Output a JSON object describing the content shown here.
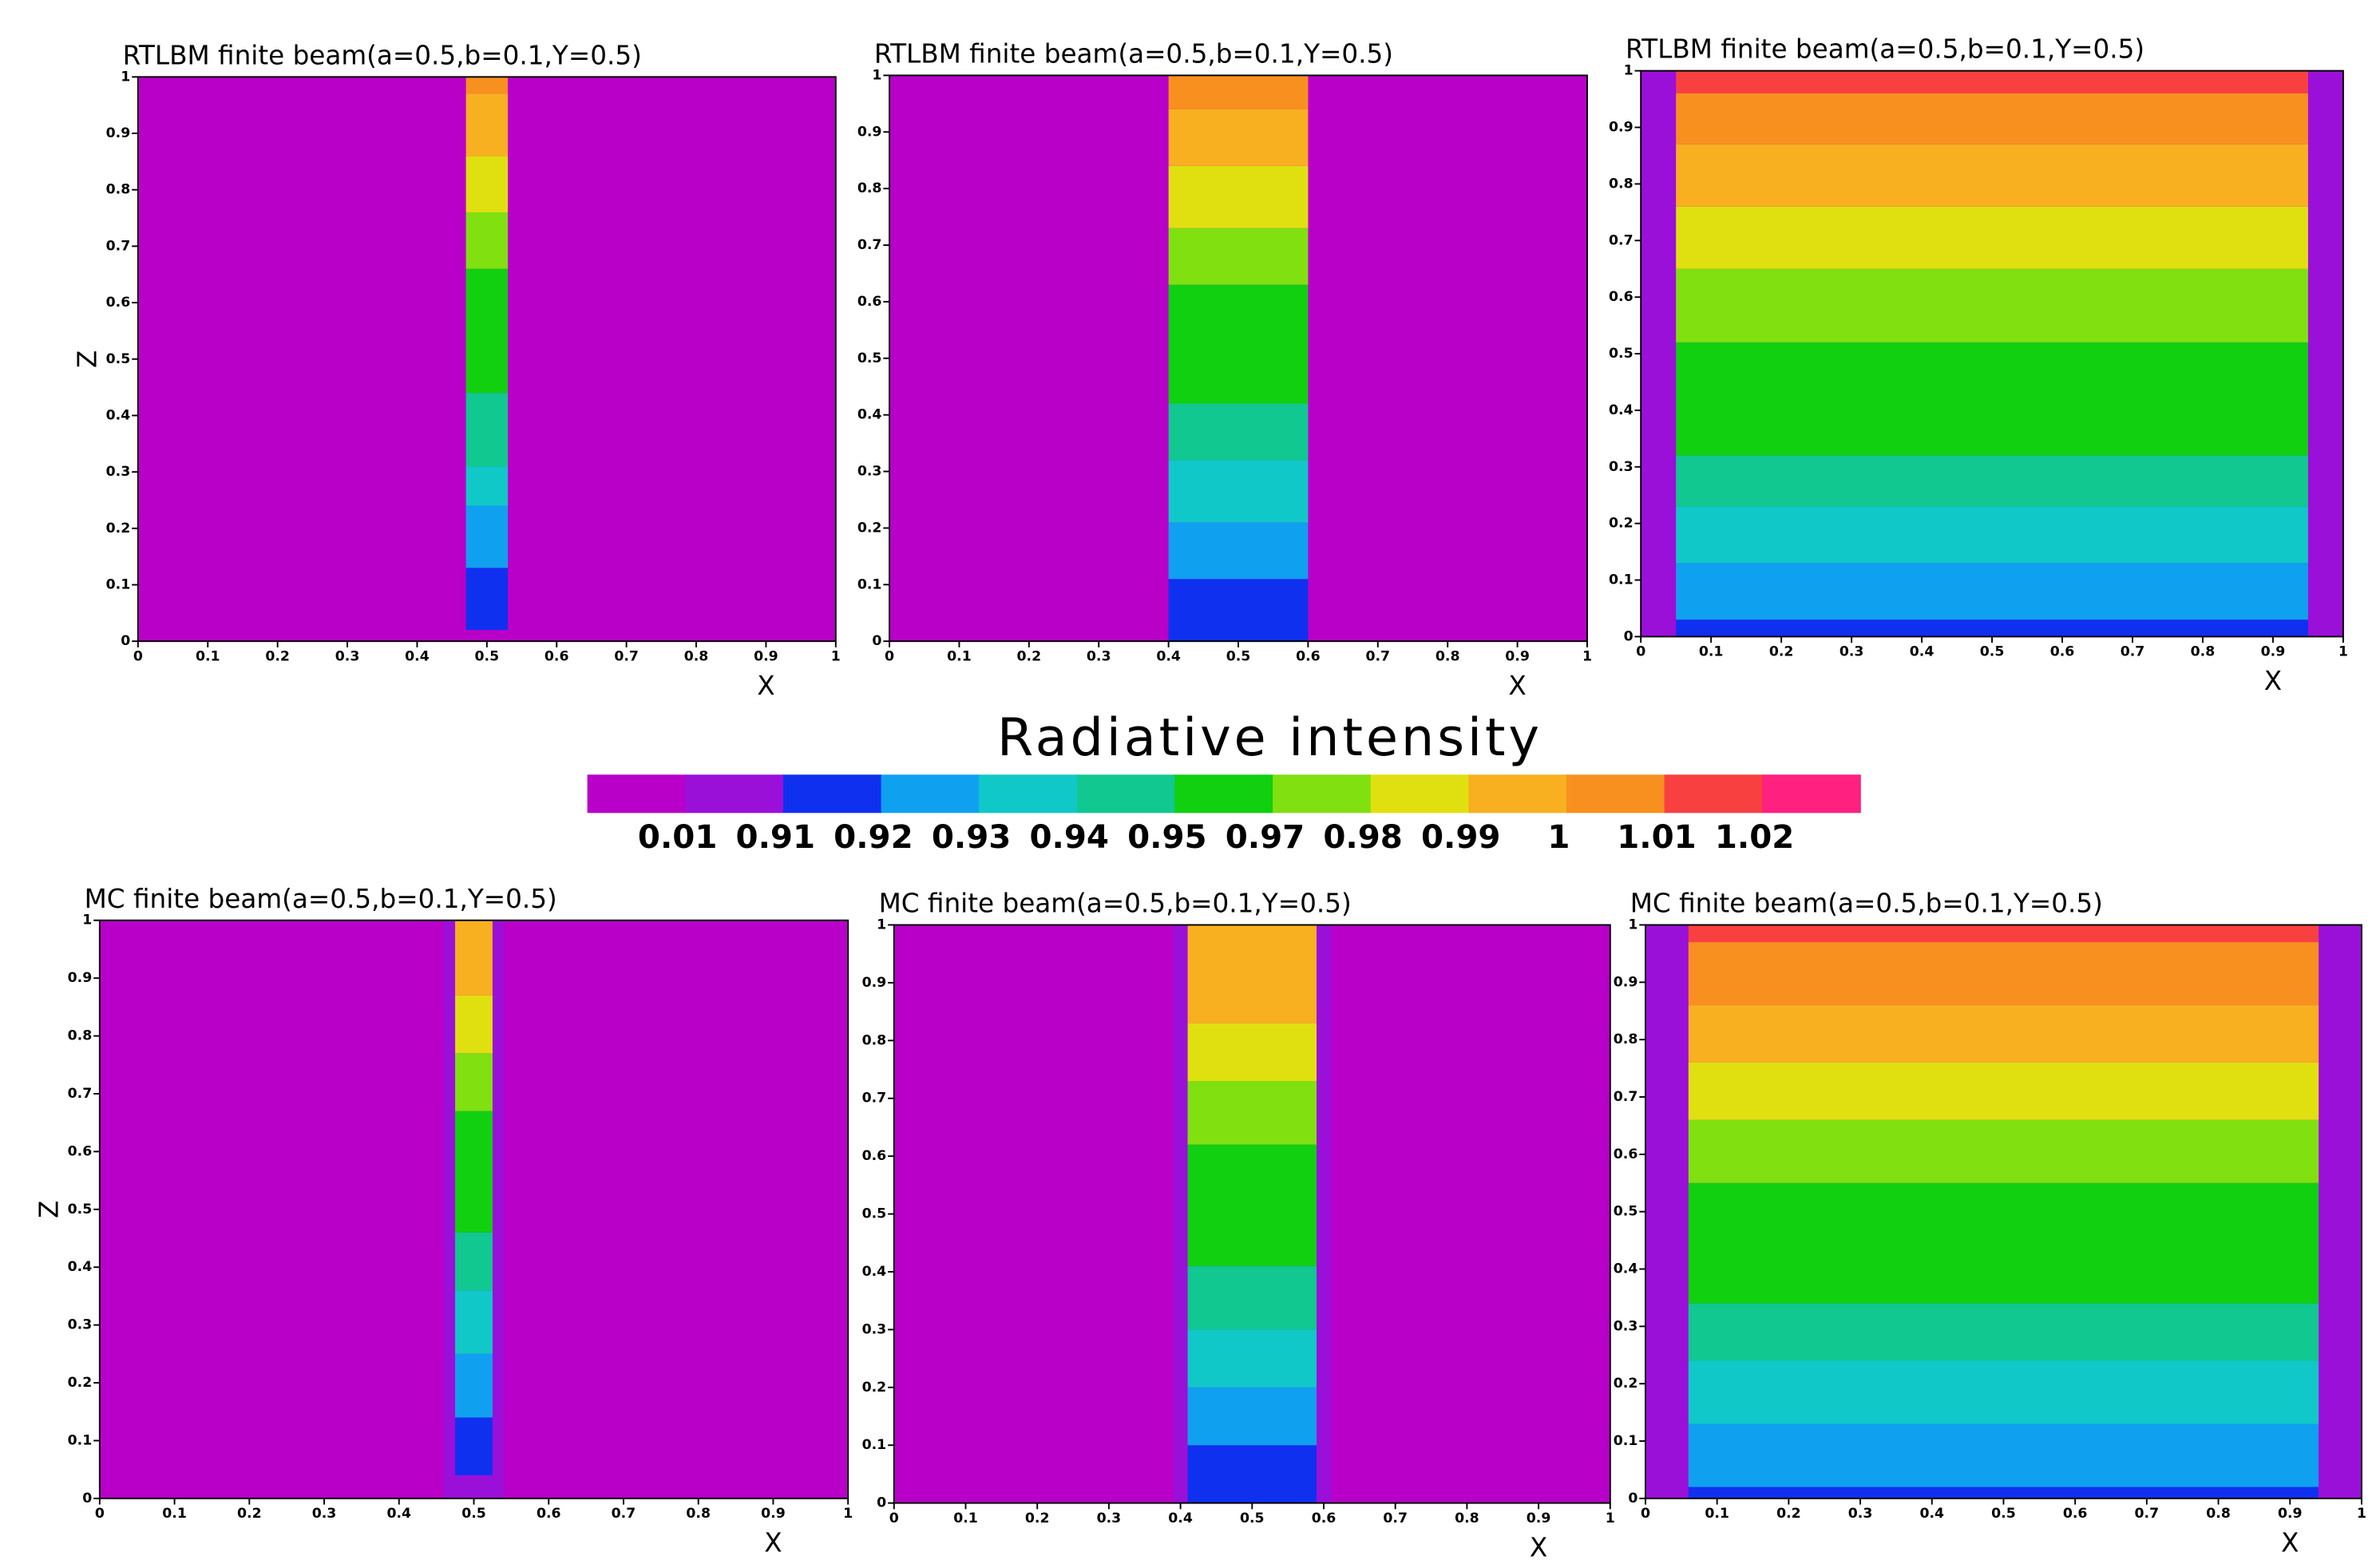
{
  "chart_data": [
    {
      "type": "contour",
      "title": "RTLBM finite beam(a=0.5,b=0.1,Y=0.5)",
      "xlabel": "X",
      "ylabel": "Z",
      "background": "#b800c8",
      "xlim": [
        0,
        1
      ],
      "ylim": [
        0,
        1
      ],
      "xticks": [
        0,
        0.1,
        0.2,
        0.3,
        0.4,
        0.5,
        0.6,
        0.7,
        0.8,
        0.9,
        1
      ],
      "yticks": [
        0,
        0.1,
        0.2,
        0.3,
        0.4,
        0.5,
        0.6,
        0.7,
        0.8,
        0.9,
        1
      ],
      "beam_x": [
        0.47,
        0.53
      ],
      "bands": [
        {
          "z": [
            0.02,
            0.13
          ],
          "color": "#1030f0"
        },
        {
          "z": [
            0.13,
            0.24
          ],
          "color": "#10a0f0"
        },
        {
          "z": [
            0.24,
            0.31
          ],
          "color": "#10c8c8"
        },
        {
          "z": [
            0.31,
            0.44
          ],
          "color": "#10c890"
        },
        {
          "z": [
            0.44,
            0.66
          ],
          "color": "#10d010"
        },
        {
          "z": [
            0.66,
            0.76
          ],
          "color": "#80e010"
        },
        {
          "z": [
            0.76,
            0.86
          ],
          "color": "#e0e010"
        },
        {
          "z": [
            0.86,
            0.97
          ],
          "color": "#f8b020"
        },
        {
          "z": [
            0.97,
            1
          ],
          "color": "#f89020"
        }
      ]
    },
    {
      "type": "contour",
      "title": "RTLBM finite beam(a=0.5,b=0.1,Y=0.5)",
      "xlabel": "X",
      "background": "#b800c8",
      "xlim": [
        0,
        1
      ],
      "ylim": [
        0,
        1
      ],
      "xticks": [
        0,
        0.1,
        0.2,
        0.3,
        0.4,
        0.5,
        0.6,
        0.7,
        0.8,
        0.9,
        1
      ],
      "yticks": [
        0,
        0.1,
        0.2,
        0.3,
        0.4,
        0.5,
        0.6,
        0.7,
        0.8,
        0.9,
        1
      ],
      "beam_x": [
        0.4,
        0.6
      ],
      "bands": [
        {
          "z": [
            0,
            0.11
          ],
          "color": "#1030f0"
        },
        {
          "z": [
            0.11,
            0.21
          ],
          "color": "#10a0f0"
        },
        {
          "z": [
            0.21,
            0.32
          ],
          "color": "#10c8c8"
        },
        {
          "z": [
            0.32,
            0.42
          ],
          "color": "#10c890"
        },
        {
          "z": [
            0.42,
            0.63
          ],
          "color": "#10d010"
        },
        {
          "z": [
            0.63,
            0.73
          ],
          "color": "#80e010"
        },
        {
          "z": [
            0.73,
            0.84
          ],
          "color": "#e0e010"
        },
        {
          "z": [
            0.84,
            0.94
          ],
          "color": "#f8b020"
        },
        {
          "z": [
            0.94,
            1
          ],
          "color": "#f89020"
        }
      ]
    },
    {
      "type": "contour",
      "title": "RTLBM finite beam(a=0.5,b=0.1,Y=0.5)",
      "xlabel": "X",
      "background": "#9a10d8",
      "xlim": [
        0,
        1
      ],
      "ylim": [
        0,
        1
      ],
      "xticks": [
        0,
        0.1,
        0.2,
        0.3,
        0.4,
        0.5,
        0.6,
        0.7,
        0.8,
        0.9,
        1
      ],
      "yticks": [
        0,
        0.1,
        0.2,
        0.3,
        0.4,
        0.5,
        0.6,
        0.7,
        0.8,
        0.9,
        1
      ],
      "beam_x": [
        0.05,
        0.95
      ],
      "bands": [
        {
          "z": [
            0,
            0.03
          ],
          "color": "#1030f0"
        },
        {
          "z": [
            0.03,
            0.13
          ],
          "color": "#10a0f0"
        },
        {
          "z": [
            0.13,
            0.23
          ],
          "color": "#10c8c8"
        },
        {
          "z": [
            0.23,
            0.32
          ],
          "color": "#10c890"
        },
        {
          "z": [
            0.32,
            0.52
          ],
          "color": "#10d010"
        },
        {
          "z": [
            0.52,
            0.65
          ],
          "color": "#80e010"
        },
        {
          "z": [
            0.65,
            0.76
          ],
          "color": "#e0e010"
        },
        {
          "z": [
            0.76,
            0.87
          ],
          "color": "#f8b020"
        },
        {
          "z": [
            0.87,
            0.96
          ],
          "color": "#f89020"
        },
        {
          "z": [
            0.96,
            1
          ],
          "color": "#f84040"
        }
      ]
    },
    {
      "type": "contour",
      "title": "MC finite beam(a=0.5,b=0.1,Y=0.5)",
      "xlabel": "X",
      "ylabel": "Z",
      "background": "#b800c8",
      "xlim": [
        0,
        1
      ],
      "ylim": [
        0,
        1
      ],
      "xticks": [
        0,
        0.1,
        0.2,
        0.3,
        0.4,
        0.5,
        0.6,
        0.7,
        0.8,
        0.9,
        1
      ],
      "yticks": [
        0,
        0.1,
        0.2,
        0.3,
        0.4,
        0.5,
        0.6,
        0.7,
        0.8,
        0.9,
        1
      ],
      "edge_x": [
        0.46,
        0.54
      ],
      "edge_color": "#9a10d8",
      "beam_x": [
        0.475,
        0.525
      ],
      "bands": [
        {
          "z": [
            0.04,
            0.14
          ],
          "color": "#1030f0"
        },
        {
          "z": [
            0.14,
            0.25
          ],
          "color": "#10a0f0"
        },
        {
          "z": [
            0.25,
            0.36
          ],
          "color": "#10c8c8"
        },
        {
          "z": [
            0.36,
            0.46
          ],
          "color": "#10c890"
        },
        {
          "z": [
            0.46,
            0.67
          ],
          "color": "#10d010"
        },
        {
          "z": [
            0.67,
            0.77
          ],
          "color": "#80e010"
        },
        {
          "z": [
            0.77,
            0.87
          ],
          "color": "#e0e010"
        },
        {
          "z": [
            0.87,
            1
          ],
          "color": "#f8b020"
        }
      ]
    },
    {
      "type": "contour",
      "title": "MC finite beam(a=0.5,b=0.1,Y=0.5)",
      "xlabel": "X",
      "background": "#b800c8",
      "xlim": [
        0,
        1
      ],
      "ylim": [
        0,
        1
      ],
      "xticks": [
        0,
        0.1,
        0.2,
        0.3,
        0.4,
        0.5,
        0.6,
        0.7,
        0.8,
        0.9,
        1
      ],
      "yticks": [
        0,
        0.1,
        0.2,
        0.3,
        0.4,
        0.5,
        0.6,
        0.7,
        0.8,
        0.9,
        1
      ],
      "edge_x": [
        0.39,
        0.61
      ],
      "edge_color": "#9a10d8",
      "beam_x": [
        0.41,
        0.59
      ],
      "bands": [
        {
          "z": [
            0,
            0.1
          ],
          "color": "#1030f0"
        },
        {
          "z": [
            0.1,
            0.2
          ],
          "color": "#10a0f0"
        },
        {
          "z": [
            0.2,
            0.3
          ],
          "color": "#10c8c8"
        },
        {
          "z": [
            0.3,
            0.41
          ],
          "color": "#10c890"
        },
        {
          "z": [
            0.41,
            0.62
          ],
          "color": "#10d010"
        },
        {
          "z": [
            0.62,
            0.73
          ],
          "color": "#80e010"
        },
        {
          "z": [
            0.73,
            0.83
          ],
          "color": "#e0e010"
        },
        {
          "z": [
            0.83,
            1
          ],
          "color": "#f8b020"
        }
      ]
    },
    {
      "type": "contour",
      "title": "MC finite beam(a=0.5,b=0.1,Y=0.5)",
      "xlabel": "X",
      "background": "#9a10d8",
      "xlim": [
        0,
        1
      ],
      "ylim": [
        0,
        1
      ],
      "xticks": [
        0,
        0.1,
        0.2,
        0.3,
        0.4,
        0.5,
        0.6,
        0.7,
        0.8,
        0.9,
        1
      ],
      "yticks": [
        0,
        0.1,
        0.2,
        0.3,
        0.4,
        0.5,
        0.6,
        0.7,
        0.8,
        0.9,
        1
      ],
      "beam_x": [
        0.06,
        0.94
      ],
      "bands": [
        {
          "z": [
            0,
            0.02
          ],
          "color": "#1030f0"
        },
        {
          "z": [
            0.02,
            0.13
          ],
          "color": "#10a0f0"
        },
        {
          "z": [
            0.13,
            0.24
          ],
          "color": "#10c8c8"
        },
        {
          "z": [
            0.24,
            0.34
          ],
          "color": "#10c890"
        },
        {
          "z": [
            0.34,
            0.55
          ],
          "color": "#10d010"
        },
        {
          "z": [
            0.55,
            0.66
          ],
          "color": "#80e010"
        },
        {
          "z": [
            0.66,
            0.76
          ],
          "color": "#e0e010"
        },
        {
          "z": [
            0.76,
            0.86
          ],
          "color": "#f8b020"
        },
        {
          "z": [
            0.86,
            0.97
          ],
          "color": "#f89020"
        },
        {
          "z": [
            0.97,
            1
          ],
          "color": "#f84040"
        }
      ]
    }
  ],
  "colorbar": {
    "title": "Radiative intensity",
    "colors": [
      "#b800c8",
      "#9a10d8",
      "#1030f0",
      "#10a0f0",
      "#10c8c8",
      "#10c890",
      "#10d010",
      "#80e010",
      "#e0e010",
      "#f8b020",
      "#f89020",
      "#f84040",
      "#ff2080"
    ],
    "ticks": [
      0.01,
      0.91,
      0.92,
      0.93,
      0.94,
      0.95,
      0.97,
      0.98,
      0.99,
      1,
      1.01,
      1.02
    ]
  }
}
